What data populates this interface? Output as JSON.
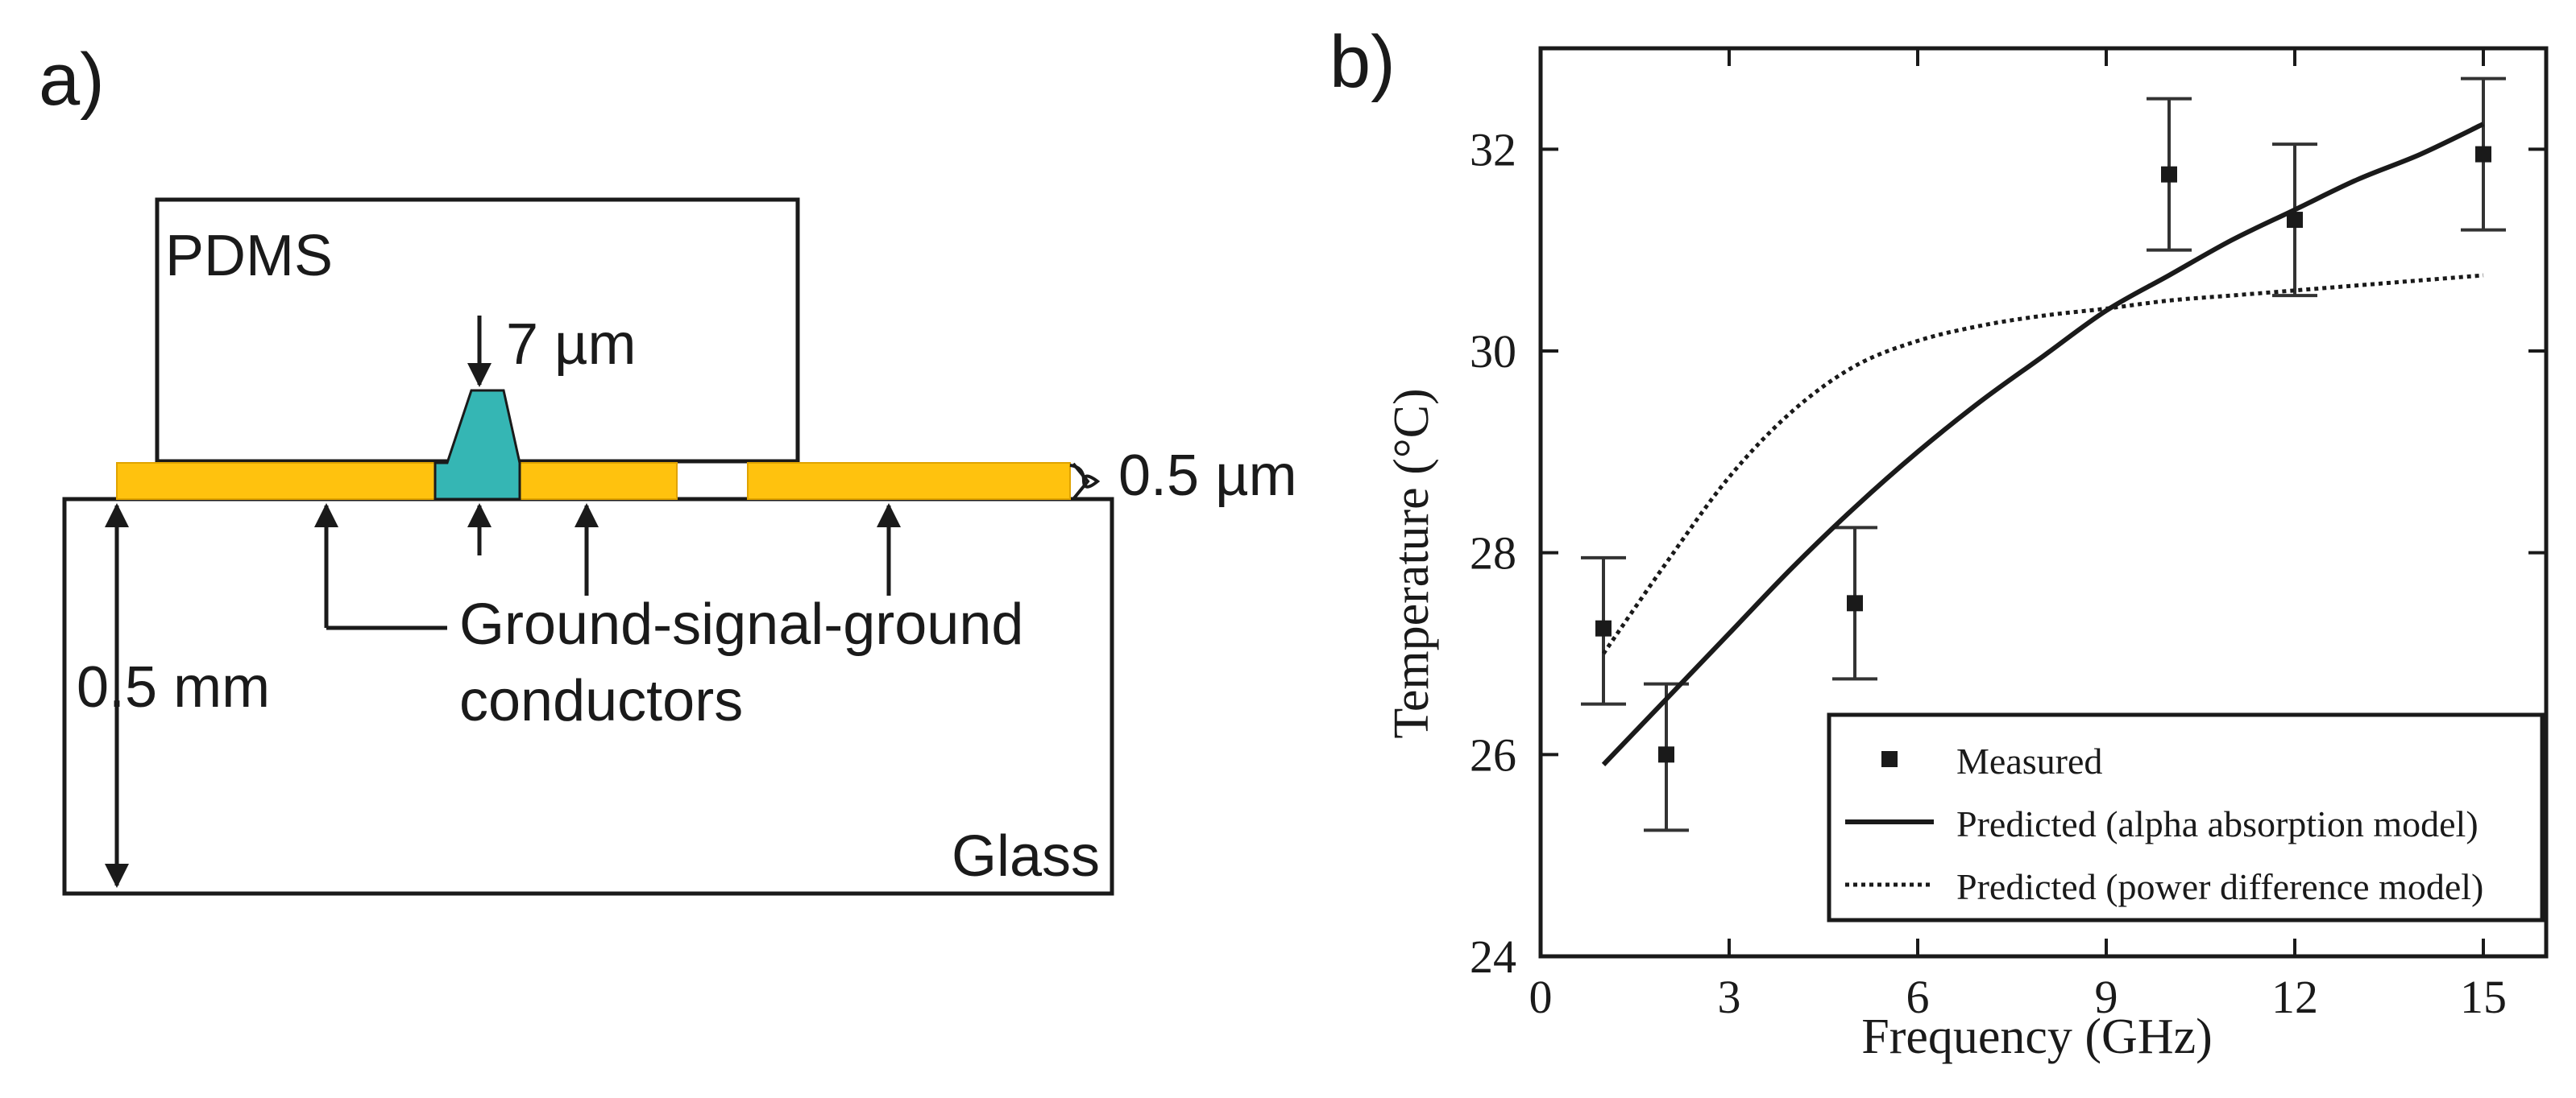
{
  "panel_a": {
    "label": "a)",
    "pdms_label": "PDMS",
    "glass_label": "Glass",
    "thickness_label": "7 µm",
    "conductor_thickness_label": "0.5 µm",
    "substrate_label": "0.5 mm",
    "conductors_label_line1": "Ground-signal-ground",
    "conductors_label_line2": "conductors",
    "colors": {
      "gold": "#FFC20E",
      "teal": "#35B6B4",
      "stroke": "#1a1a1a"
    }
  },
  "panel_b": {
    "label": "b)"
  },
  "chart_data": {
    "type": "line",
    "xlabel": "Frequency (GHz)",
    "ylabel": "Temperature (°C)",
    "xlim": [
      0,
      16
    ],
    "ylim": [
      24,
      33
    ],
    "xticks": [
      0,
      3,
      6,
      9,
      12,
      15
    ],
    "yticks": [
      24,
      26,
      28,
      30,
      32
    ],
    "legend_position": "bottom-right",
    "grid": false,
    "series": [
      {
        "name": "Measured",
        "style": "points-with-errorbars",
        "x": [
          1,
          2,
          5,
          10,
          12,
          15
        ],
        "y": [
          27.25,
          26.0,
          27.5,
          31.75,
          31.3,
          31.95
        ],
        "err_low": [
          26.5,
          25.25,
          26.75,
          31.0,
          30.55,
          31.2
        ],
        "err_high": [
          27.95,
          26.7,
          28.25,
          32.5,
          32.05,
          32.7
        ]
      },
      {
        "name": "Predicted (alpha absorption model)",
        "style": "solid",
        "x": [
          1,
          2,
          3,
          4,
          5,
          6,
          7,
          8,
          9,
          10,
          11,
          12,
          13,
          14,
          15
        ],
        "y": [
          25.9,
          26.55,
          27.2,
          27.85,
          28.45,
          29.0,
          29.5,
          29.95,
          30.4,
          30.75,
          31.1,
          31.4,
          31.7,
          31.95,
          32.25
        ]
      },
      {
        "name": "Predicted (power difference model)",
        "style": "dotted",
        "x": [
          1,
          2,
          3,
          4,
          5,
          6,
          7,
          8,
          9,
          10,
          11,
          12,
          13,
          14,
          15
        ],
        "y": [
          27.0,
          27.9,
          28.75,
          29.4,
          29.85,
          30.1,
          30.25,
          30.35,
          30.42,
          30.5,
          30.55,
          30.6,
          30.65,
          30.7,
          30.75
        ]
      }
    ]
  }
}
